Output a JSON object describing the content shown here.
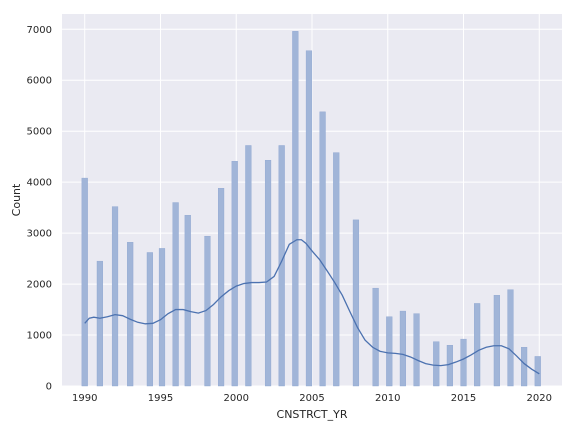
{
  "chart_data": {
    "type": "bar",
    "subtype": "histogram-with-kde",
    "title": "",
    "xlabel": "CNSTRCT_YR",
    "ylabel": "Count",
    "xlim": [
      1988.5,
      2021.5
    ],
    "ylim": [
      0,
      7300
    ],
    "grid": true,
    "x_ticks": [
      1990,
      1995,
      2000,
      2005,
      2010,
      2015,
      2020
    ],
    "y_ticks": [
      0,
      1000,
      2000,
      3000,
      4000,
      5000,
      6000,
      7000
    ],
    "bar_width_years": 0.38,
    "colors": {
      "background": "#eaeaf2",
      "grid": "#ffffff",
      "bar": "#a1b5d8",
      "bar_edge": "#8da5d0",
      "kde": "#4c72b0"
    },
    "bars": [
      {
        "x": 1990,
        "y": 4080
      },
      {
        "x": 1991,
        "y": 2450
      },
      {
        "x": 1992,
        "y": 3520
      },
      {
        "x": 1993,
        "y": 2820
      },
      {
        "x": 1994.3,
        "y": 2620
      },
      {
        "x": 1995.1,
        "y": 2700
      },
      {
        "x": 1996,
        "y": 3600
      },
      {
        "x": 1996.8,
        "y": 3350
      },
      {
        "x": 1998.1,
        "y": 2940
      },
      {
        "x": 1999,
        "y": 3880
      },
      {
        "x": 1999.9,
        "y": 4410
      },
      {
        "x": 2000.8,
        "y": 4720
      },
      {
        "x": 2002.1,
        "y": 4430
      },
      {
        "x": 2003,
        "y": 4720
      },
      {
        "x": 2003.9,
        "y": 6960
      },
      {
        "x": 2004.8,
        "y": 6580
      },
      {
        "x": 2005.7,
        "y": 5380
      },
      {
        "x": 2006.6,
        "y": 4580
      },
      {
        "x": 2007.9,
        "y": 3260
      },
      {
        "x": 2009.2,
        "y": 1920
      },
      {
        "x": 2010.1,
        "y": 1360
      },
      {
        "x": 2011,
        "y": 1470
      },
      {
        "x": 2011.9,
        "y": 1420
      },
      {
        "x": 2013.2,
        "y": 870
      },
      {
        "x": 2014.1,
        "y": 800
      },
      {
        "x": 2015,
        "y": 920
      },
      {
        "x": 2015.9,
        "y": 1620
      },
      {
        "x": 2017.2,
        "y": 1780
      },
      {
        "x": 2018.1,
        "y": 1890
      },
      {
        "x": 2019,
        "y": 760
      },
      {
        "x": 2019.9,
        "y": 580
      }
    ],
    "kde": {
      "x": [
        1990,
        1990.3,
        1990.6,
        1991,
        1991.5,
        1992,
        1992.5,
        1993,
        1993.5,
        1994,
        1994.5,
        1995,
        1995.5,
        1996,
        1996.5,
        1997,
        1997.5,
        1998,
        1998.5,
        1999,
        1999.5,
        2000,
        2000.5,
        2001,
        2001.5,
        2002,
        2002.5,
        2003,
        2003.5,
        2004,
        2004.3,
        2004.6,
        2005,
        2005.5,
        2006,
        2006.5,
        2007,
        2007.5,
        2008,
        2008.5,
        2009,
        2009.5,
        2010,
        2010.5,
        2011,
        2011.5,
        2012,
        2012.5,
        2013,
        2013.5,
        2014,
        2014.5,
        2015,
        2015.5,
        2016,
        2016.5,
        2017,
        2017.5,
        2018,
        2018.5,
        2019,
        2019.5,
        2020
      ],
      "y": [
        1230,
        1330,
        1350,
        1330,
        1360,
        1400,
        1380,
        1310,
        1250,
        1220,
        1230,
        1300,
        1420,
        1500,
        1500,
        1460,
        1430,
        1480,
        1600,
        1750,
        1870,
        1960,
        2010,
        2030,
        2030,
        2040,
        2150,
        2450,
        2780,
        2870,
        2870,
        2800,
        2650,
        2480,
        2260,
        2030,
        1780,
        1460,
        1150,
        900,
        760,
        680,
        650,
        640,
        620,
        570,
        500,
        440,
        410,
        400,
        420,
        470,
        530,
        610,
        700,
        760,
        790,
        790,
        730,
        590,
        440,
        330,
        240
      ]
    }
  }
}
